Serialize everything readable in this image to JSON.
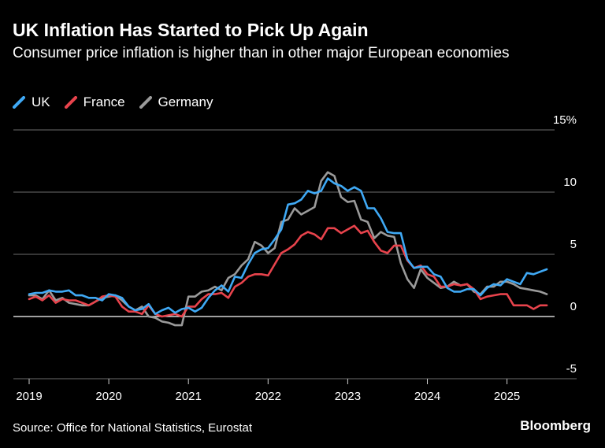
{
  "header": {
    "title": "UK Inflation Has Started to Pick Up Again",
    "subtitle": "Consumer price inflation is higher than in other major European economies"
  },
  "footer": {
    "source": "Source: Office for National Statistics, Eurostat",
    "brand": "Bloomberg"
  },
  "colors": {
    "background": "#000000",
    "UK": "#3fa9f5",
    "France": "#e8434c",
    "Germany": "#9a9a9a",
    "grid": "#6b6b6b",
    "zero_line": "#ffffff"
  },
  "chart_data": {
    "type": "line",
    "legend_position": "top-left",
    "grid": true,
    "x_axis": {
      "type": "date",
      "range": [
        "2019-01",
        "2025-11"
      ],
      "tick_labels": [
        "2019",
        "2020",
        "2021",
        "2022",
        "2023",
        "2024",
        "2025"
      ]
    },
    "y_axis": {
      "position": "right",
      "range": [
        -5,
        15
      ],
      "ticks": [
        -5,
        0,
        5,
        10,
        15
      ],
      "tick_labels": [
        "-5",
        "0",
        "5",
        "10",
        "15%"
      ]
    },
    "x_start": "2019-01",
    "series": [
      {
        "name": "UK",
        "color": "#3fa9f5",
        "values": [
          1.8,
          1.9,
          1.9,
          2.1,
          2.0,
          2.0,
          2.1,
          1.7,
          1.7,
          1.5,
          1.5,
          1.3,
          1.8,
          1.7,
          1.5,
          0.8,
          0.5,
          0.6,
          1.0,
          0.2,
          0.5,
          0.7,
          0.3,
          0.6,
          0.7,
          0.4,
          0.7,
          1.5,
          2.1,
          2.5,
          2.0,
          3.2,
          3.1,
          4.2,
          5.1,
          5.4,
          5.5,
          6.2,
          7.0,
          9.0,
          9.1,
          9.4,
          10.1,
          9.9,
          10.1,
          11.1,
          10.7,
          10.5,
          10.1,
          10.4,
          10.1,
          8.7,
          8.7,
          7.9,
          6.8,
          6.7,
          6.7,
          4.6,
          3.9,
          4.0,
          4.0,
          3.4,
          3.2,
          2.3,
          2.0,
          2.0,
          2.2,
          2.2,
          1.7,
          2.3,
          2.6,
          2.5,
          3.0,
          2.8,
          2.6,
          3.5,
          3.4,
          3.6,
          3.8
        ]
      },
      {
        "name": "France",
        "color": "#e8434c",
        "values": [
          1.4,
          1.6,
          1.3,
          1.7,
          1.1,
          1.4,
          1.3,
          1.3,
          1.1,
          0.9,
          1.2,
          1.6,
          1.7,
          1.6,
          0.8,
          0.4,
          0.4,
          0.2,
          0.9,
          0.2,
          0.0,
          0.1,
          0.2,
          0.0,
          0.8,
          0.8,
          1.4,
          1.8,
          1.8,
          1.9,
          1.5,
          2.4,
          2.7,
          3.2,
          3.4,
          3.4,
          3.3,
          4.2,
          5.1,
          5.4,
          5.8,
          6.5,
          6.8,
          6.6,
          6.2,
          7.1,
          7.1,
          6.7,
          7.0,
          7.3,
          6.7,
          6.9,
          6.0,
          5.3,
          5.1,
          5.7,
          5.7,
          4.5,
          3.9,
          4.1,
          3.4,
          3.2,
          2.4,
          2.4,
          2.6,
          2.5,
          2.6,
          2.2,
          1.4,
          1.6,
          1.7,
          1.8,
          1.8,
          0.9,
          0.9,
          0.9,
          0.6,
          0.9,
          0.9
        ]
      },
      {
        "name": "Germany",
        "color": "#9a9a9a",
        "values": [
          1.7,
          1.7,
          1.4,
          2.1,
          1.3,
          1.5,
          1.1,
          1.0,
          0.9,
          0.9,
          1.2,
          1.5,
          1.6,
          1.7,
          1.3,
          0.8,
          0.5,
          0.8,
          0.0,
          -0.1,
          -0.4,
          -0.5,
          -0.7,
          -0.7,
          1.6,
          1.6,
          2.0,
          2.1,
          2.4,
          2.1,
          3.1,
          3.4,
          4.1,
          4.6,
          6.0,
          5.7,
          5.1,
          5.5,
          7.6,
          7.8,
          8.7,
          8.2,
          8.5,
          8.8,
          10.9,
          11.6,
          11.3,
          9.6,
          9.2,
          9.3,
          7.8,
          7.6,
          6.3,
          6.8,
          6.5,
          6.4,
          4.3,
          3.0,
          2.3,
          3.8,
          3.1,
          2.7,
          2.3,
          2.4,
          2.8,
          2.5,
          2.6,
          2.0,
          1.8,
          2.4,
          2.4,
          2.8,
          2.8,
          2.6,
          2.3,
          2.2,
          2.1,
          2.0,
          1.8
        ]
      }
    ]
  }
}
